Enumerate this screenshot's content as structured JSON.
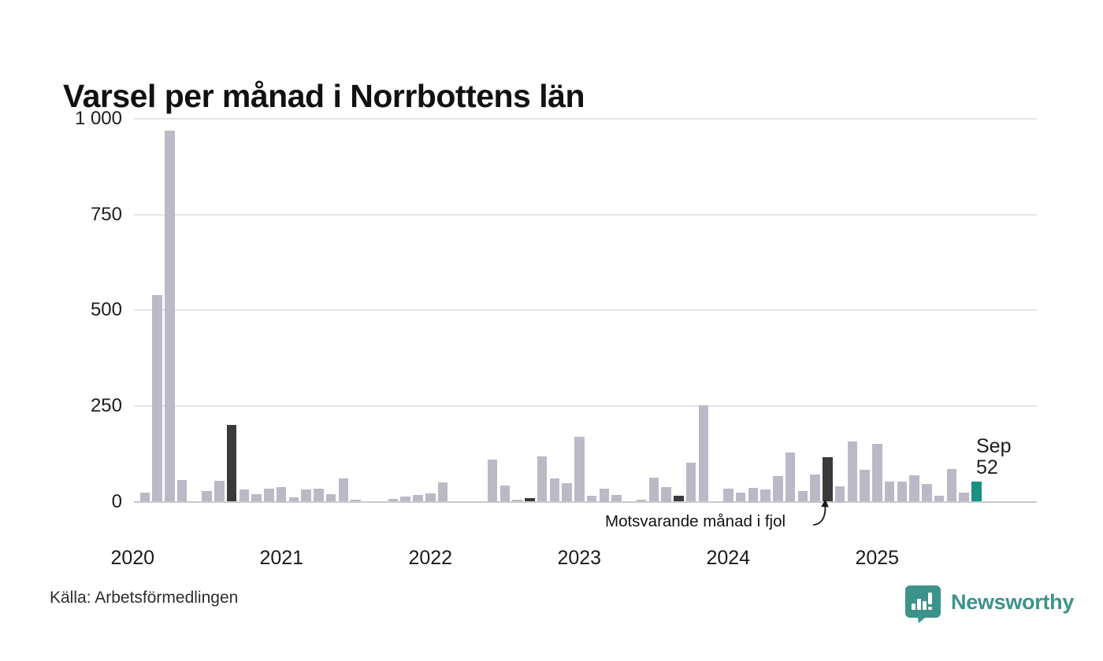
{
  "title": "Varsel per månad i Norrbottens län",
  "source": "Källa: Arbetsförmedlingen",
  "brand": {
    "name": "Newsworthy",
    "color": "#3b938b"
  },
  "annotation": {
    "text": "Motsvarande månad i fjol"
  },
  "current_label": {
    "month": "Sep",
    "value": "52"
  },
  "colors": {
    "bar": "#bcb8c6",
    "highlight_dark": "#3a3a3a",
    "current": "#179180",
    "grid": "#e5e4e9",
    "baseline": "#c9c8ce"
  },
  "chart_data": {
    "type": "bar",
    "title": "Varsel per månad i Norrbottens län",
    "xlabel": "",
    "ylabel": "",
    "ylim": [
      0,
      1000
    ],
    "grid": "horizontal",
    "yticks": [
      {
        "value": 1000,
        "label": "1 000"
      },
      {
        "value": 750,
        "label": "750"
      },
      {
        "value": 500,
        "label": "500"
      },
      {
        "value": 250,
        "label": "250"
      },
      {
        "value": 0,
        "label": "0"
      }
    ],
    "highlight_month_index": 8,
    "current_bar": {
      "year": 2025,
      "month_index": 8,
      "label": "Sep",
      "value": 52
    },
    "annotated_bar": {
      "year": 2024,
      "month_index": 8,
      "value": 117
    },
    "series": [
      {
        "year": 2020,
        "values": [
          0,
          23,
          540,
          970,
          56,
          0,
          28,
          55,
          200,
          31,
          20,
          33
        ]
      },
      {
        "year": 2021,
        "values": [
          38,
          12,
          31,
          33,
          20,
          60,
          6,
          0,
          0,
          7,
          14,
          17
        ]
      },
      {
        "year": 2022,
        "values": [
          22,
          50,
          0,
          0,
          0,
          111,
          43,
          5,
          10,
          119,
          60,
          49
        ]
      },
      {
        "year": 2023,
        "values": [
          170,
          16,
          35,
          18,
          0,
          6,
          62,
          38,
          15,
          101,
          252,
          0
        ]
      },
      {
        "year": 2024,
        "values": [
          34,
          23,
          36,
          32,
          67,
          128,
          27,
          71,
          117,
          40,
          158,
          83
        ]
      },
      {
        "year": 2025,
        "values": [
          152,
          52,
          52,
          68,
          47,
          16,
          85,
          23,
          52
        ]
      }
    ]
  }
}
